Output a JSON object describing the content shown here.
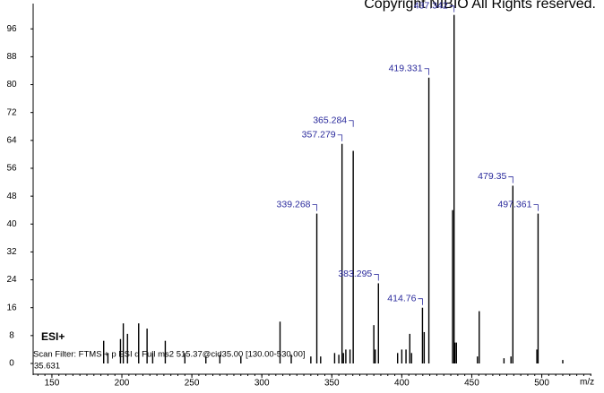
{
  "chart_data": {
    "type": "bar",
    "title": "Copyright NIBIO All Rights reserved.",
    "annotations": [
      "ESI+",
      "Scan Filter: FTMS + p ESI d Full ms2 515.37@cid35.00 [130.00-530.00]",
      "35.631"
    ],
    "x_label": "m/z",
    "color": "#000000",
    "label_color": "#2a2a9c",
    "series": [
      {
        "x": [
          187,
          190,
          199,
          201,
          204,
          212,
          218,
          222,
          231,
          245,
          260,
          270,
          285,
          313,
          321,
          335,
          342,
          352,
          355,
          358.3,
          360,
          363,
          380,
          381,
          397,
          400,
          403,
          405.7,
          407,
          416,
          436.3,
          437.9,
          439,
          454,
          455.3,
          473,
          478,
          496.5,
          515
        ],
        "values": [
          6.5,
          3,
          7,
          11.5,
          8.5,
          11.5,
          10,
          3,
          6.5,
          3,
          2,
          2.5,
          2,
          12,
          2.5,
          2,
          2,
          3,
          2.5,
          3,
          4,
          4,
          11,
          4,
          3,
          4,
          4,
          8.5,
          3,
          9,
          44,
          6,
          6,
          2,
          15,
          1.5,
          2,
          4,
          1
        ]
      },
      {
        "x": [
          339.268,
          357.279,
          365.284,
          383.295,
          414.76,
          419.331,
          437.342,
          479.35,
          497.361
        ],
        "values": [
          43,
          63,
          61,
          23,
          16,
          82,
          100,
          51,
          43
        ]
      }
    ],
    "xlim": [
      136.6,
      535.5
    ],
    "xticks": [
      150,
      200,
      250,
      300,
      350,
      400,
      450,
      500
    ],
    "ylim": [
      0,
      103
    ],
    "yticks": [
      0,
      8,
      16,
      24,
      32,
      40,
      48,
      56,
      64,
      72,
      80,
      88,
      96
    ]
  }
}
